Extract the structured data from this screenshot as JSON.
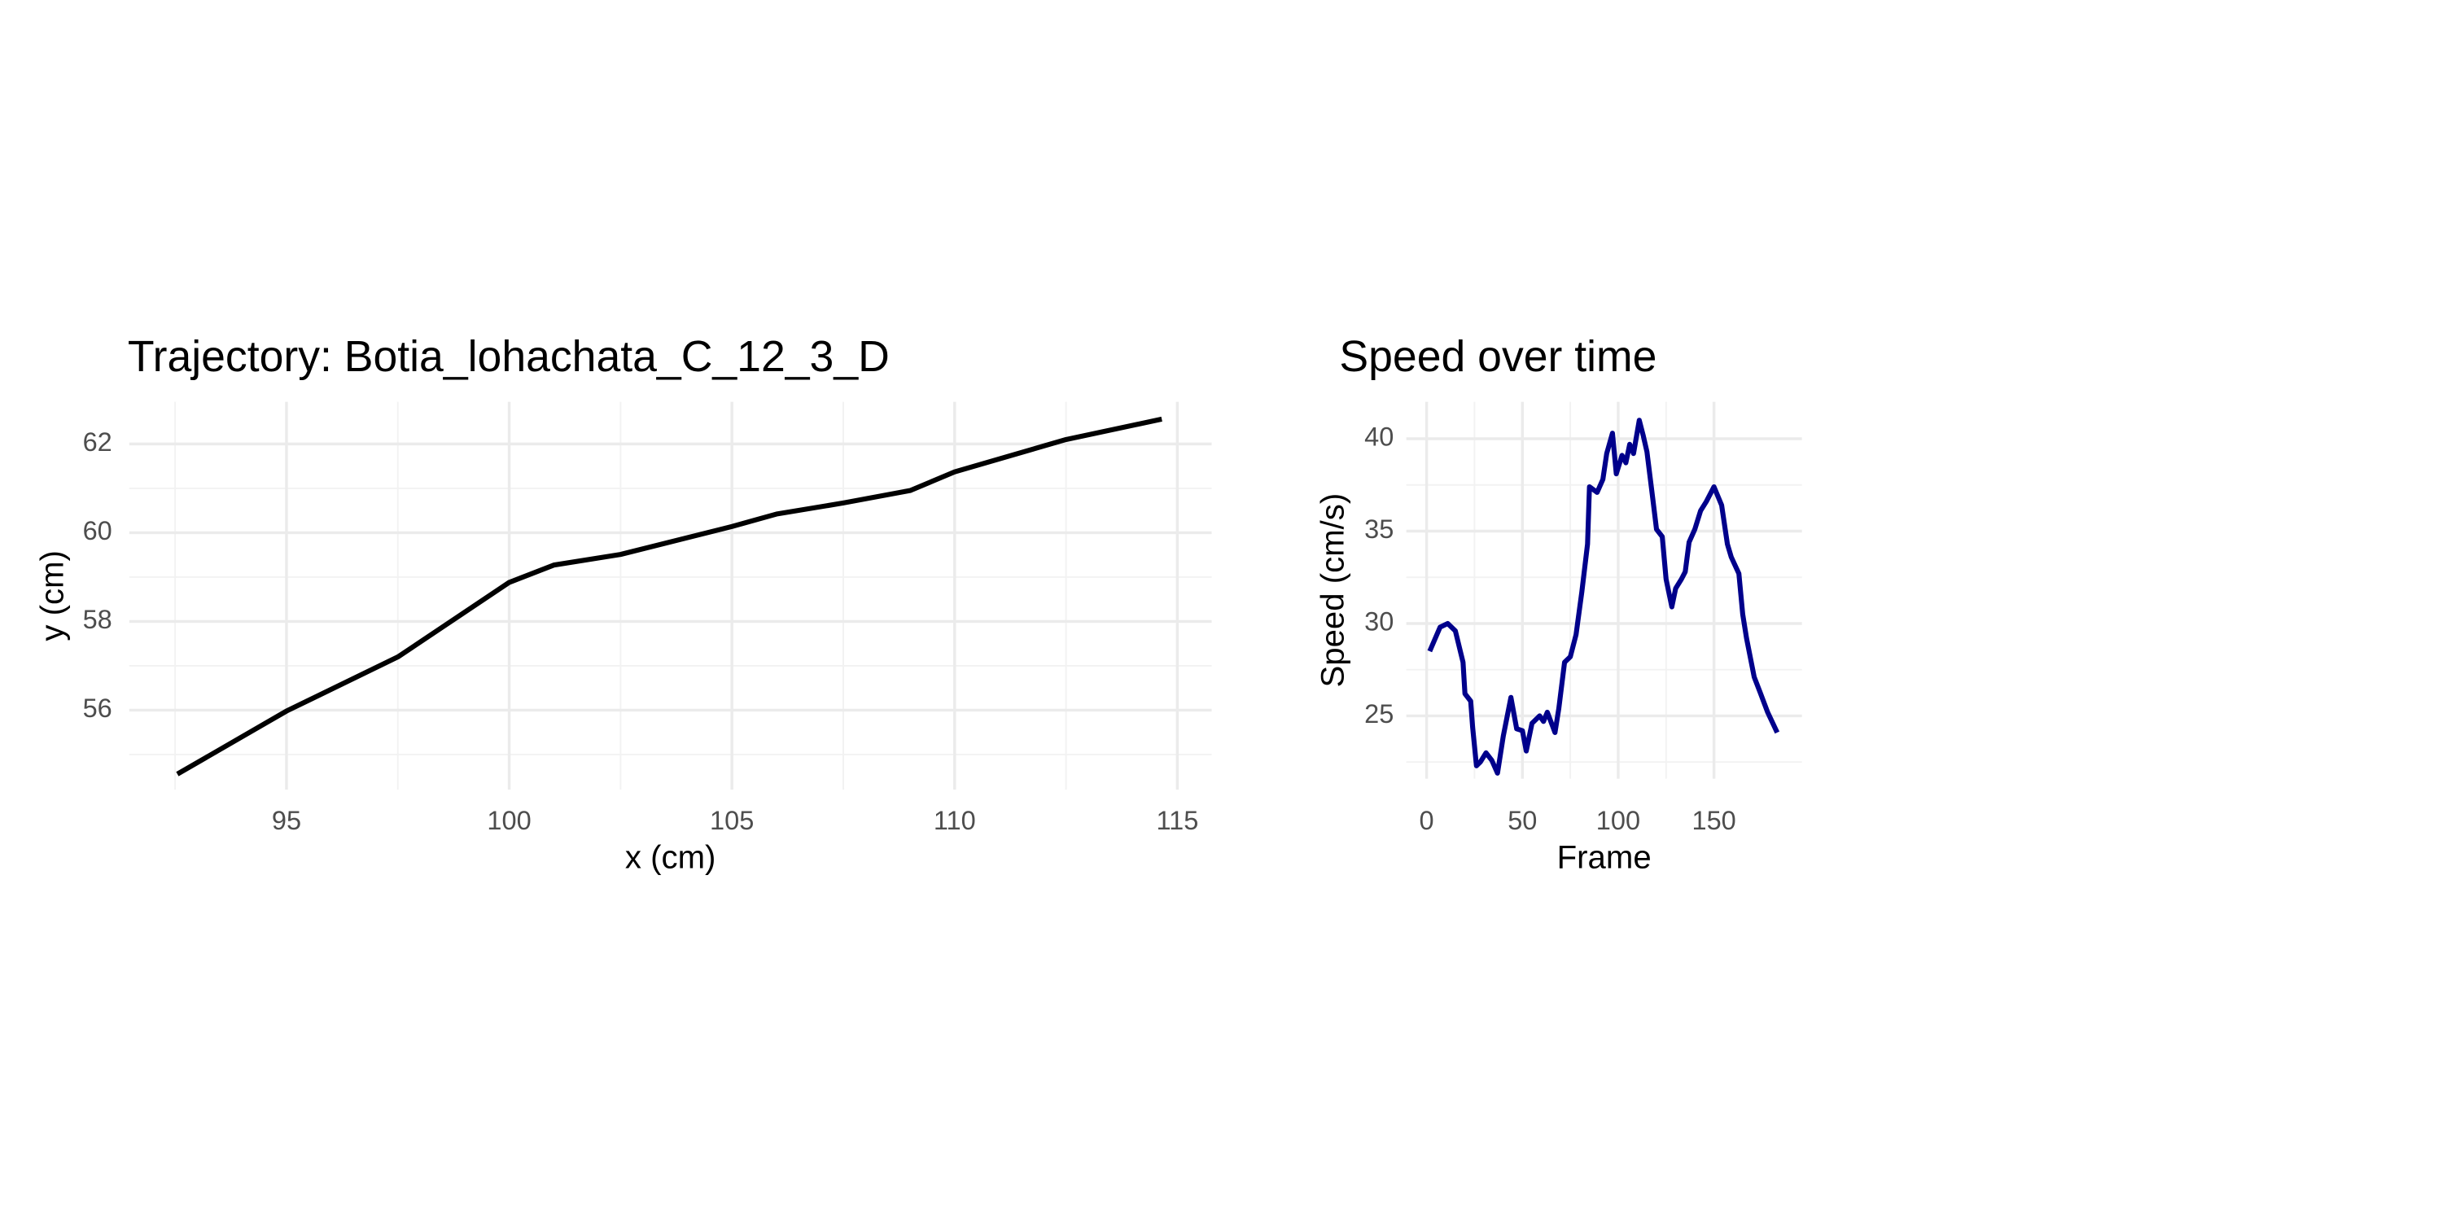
{
  "chart_data": [
    {
      "type": "line",
      "title": "Trajectory: Botia_lohachata_C_12_3_D",
      "x_label": "x (cm)",
      "y_label": "y (cm)",
      "color": "#000000",
      "x": [
        92.55,
        95,
        97.5,
        100,
        101,
        102.5,
        105,
        106,
        107.5,
        109,
        110,
        112.5,
        114.65
      ],
      "values": [
        54.56,
        55.98,
        57.2,
        58.88,
        59.27,
        59.51,
        60.14,
        60.42,
        60.67,
        60.95,
        61.37,
        62.1,
        62.56
      ],
      "xlim": [
        91.47,
        115.77
      ],
      "ylim": [
        54.21,
        62.95
      ],
      "xticks": [
        95,
        100,
        105,
        110,
        115
      ],
      "yticks": [
        56,
        58,
        60,
        62
      ],
      "grid": true
    },
    {
      "type": "line",
      "title": "Speed over time",
      "x_label": "Frame",
      "y_label": "Speed (cm/s)",
      "color": "#00008b",
      "x": [
        1.6,
        7,
        11,
        15,
        19,
        20,
        23,
        24,
        26,
        28,
        31,
        34,
        37,
        40,
        44,
        47,
        50,
        52,
        55,
        59,
        61,
        63,
        67,
        69,
        72,
        75,
        78,
        81,
        84,
        85,
        89,
        92,
        94,
        97,
        99,
        102,
        104,
        106,
        108,
        111,
        113,
        115,
        118,
        120,
        123,
        125,
        128,
        130,
        133,
        135,
        137,
        140,
        143,
        146,
        150,
        154,
        157,
        159,
        163,
        165,
        167,
        171,
        174,
        178,
        183
      ],
      "values": [
        28.5,
        29.8,
        30.0,
        29.6,
        27.9,
        26.2,
        25.8,
        24.4,
        22.3,
        22.5,
        23.0,
        22.6,
        21.9,
        23.9,
        26.0,
        24.3,
        24.2,
        23.1,
        24.6,
        25.0,
        24.7,
        25.2,
        24.1,
        25.4,
        27.9,
        28.2,
        29.4,
        31.7,
        34.3,
        37.4,
        37.1,
        37.8,
        39.2,
        40.3,
        38.1,
        39.1,
        38.7,
        39.7,
        39.2,
        41.0,
        40.2,
        39.3,
        36.8,
        35.1,
        34.7,
        32.4,
        30.9,
        31.9,
        32.4,
        32.8,
        34.4,
        35.1,
        36.1,
        36.6,
        37.4,
        36.4,
        34.3,
        33.6,
        32.7,
        30.5,
        29.2,
        27.1,
        26.3,
        25.2,
        24.1
      ],
      "xlim": [
        -10.6,
        195.9
      ],
      "ylim": [
        21.6,
        42.0
      ],
      "xticks": [
        0,
        50,
        100,
        150
      ],
      "yticks": [
        25,
        30,
        35,
        40
      ],
      "grid": true
    }
  ]
}
